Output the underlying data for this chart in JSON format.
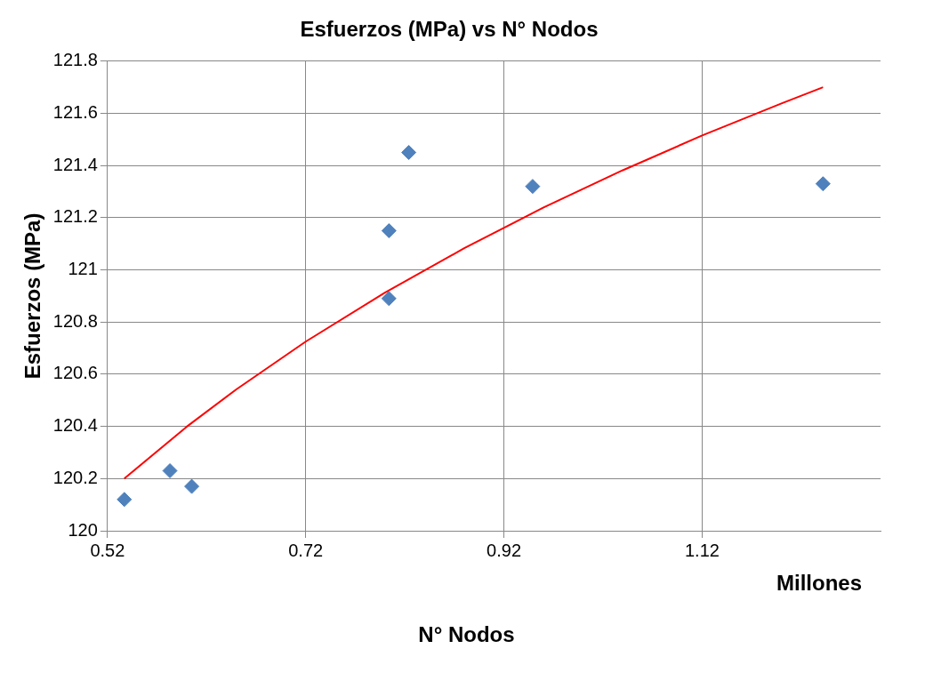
{
  "chart_data": {
    "type": "scatter",
    "title": "Esfuerzos (MPa) vs N° Nodos",
    "xlabel": "N° Nodos",
    "ylabel": "Esfuerzos (MPa)",
    "annotations": [
      "Millones"
    ],
    "series": [
      {
        "type": "scatter",
        "color": "#4f81bd",
        "marker": "diamond",
        "x": [
          0.537,
          0.583,
          0.605,
          0.804,
          0.804,
          0.824,
          0.949,
          1.242
        ],
        "values": [
          120.12,
          120.23,
          120.17,
          120.89,
          121.15,
          121.45,
          121.32,
          121.33
        ]
      },
      {
        "type": "line",
        "color": "#ff0000",
        "marker": "none",
        "x": [
          0.537,
          0.6,
          0.65,
          0.72,
          0.8,
          0.88,
          0.96,
          1.04,
          1.12,
          1.2,
          1.242
        ],
        "values": [
          120.2,
          120.399,
          120.542,
          120.725,
          120.913,
          121.083,
          121.239,
          121.382,
          121.515,
          121.638,
          121.7
        ]
      }
    ],
    "xlim": [
      0.52,
      1.3
    ],
    "xticks": [
      0.52,
      0.72,
      0.92,
      1.12
    ],
    "ylim": [
      120,
      121.8
    ],
    "yticks": [
      120,
      120.2,
      120.4,
      120.6,
      120.8,
      121,
      121.2,
      121.4,
      121.6,
      121.8
    ],
    "grid": true,
    "legend": false
  }
}
